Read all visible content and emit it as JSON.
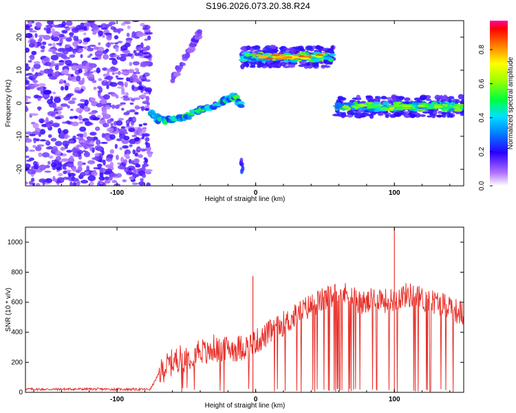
{
  "title": "S196.2026.073.20.38.R24",
  "chart_data": [
    {
      "type": "heatmap",
      "title": "S196.2026.073.20.38.R24",
      "xlabel": "Height of straight line (km)",
      "ylabel": "Frequency (Hz)",
      "xlim": [
        -166,
        150
      ],
      "ylim": [
        -25,
        25
      ],
      "xticks": [
        "-100",
        "0",
        "100"
      ],
      "xtick_values": [
        -100,
        0,
        100
      ],
      "yticks": [
        "20",
        "10",
        "0",
        "-10",
        "-20"
      ],
      "ytick_values": [
        20,
        10,
        0,
        -10,
        -20
      ],
      "colorbar": {
        "label": "Normalized spectral amplitude",
        "range": [
          0,
          0.97
        ],
        "ticks": [
          "0.0",
          "0.2",
          "0.4",
          "0.6",
          "0.8"
        ],
        "tick_values": [
          0,
          0.2,
          0.4,
          0.6,
          0.8
        ]
      },
      "features": [
        {
          "name": "noise",
          "x_range": [
            -166,
            -76
          ],
          "y_range": [
            -25,
            25
          ],
          "amplitude": 0.15
        },
        {
          "name": "rising-track",
          "points": [
            [
              -76,
              -3
            ],
            [
              -70,
              -5
            ],
            [
              -60,
              -5
            ],
            [
              -50,
              -4
            ],
            [
              -40,
              -2
            ],
            [
              -30,
              -1
            ],
            [
              -22,
              1
            ],
            [
              -15,
              2
            ],
            [
              -10,
              -1
            ]
          ],
          "amplitude": 0.5
        },
        {
          "name": "upper-band",
          "x_range": [
            -10,
            56
          ],
          "y": 14,
          "amplitude": 0.9
        },
        {
          "name": "lower-band",
          "x_range": [
            58,
            150
          ],
          "y": -1,
          "amplitude": 0.7
        },
        {
          "name": "upper-left-streak",
          "points": [
            [
              -60,
              7
            ],
            [
              -45,
              18
            ],
            [
              -40,
              22
            ]
          ],
          "amplitude": 0.15
        },
        {
          "name": "lower-blob",
          "x": -10,
          "y": -19,
          "amplitude": 0.2
        }
      ]
    },
    {
      "type": "line",
      "xlabel": "Height of straight line (km)",
      "ylabel": "SNR (10 * v/v)",
      "xlim": [
        -166,
        150
      ],
      "ylim": [
        0,
        1100
      ],
      "xticks": [
        "-100",
        "0",
        "100"
      ],
      "xtick_values": [
        -100,
        0,
        100
      ],
      "yticks": [
        "1000",
        "800",
        "600",
        "400",
        "200",
        "0"
      ],
      "ytick_values": [
        1000,
        800,
        600,
        400,
        200,
        0
      ],
      "series": [
        {
          "name": "SNR",
          "color": "#e8302a",
          "x": [
            -166,
            -150,
            -130,
            -110,
            -90,
            -76,
            -70,
            -65,
            -60,
            -55,
            -50,
            -45,
            -40,
            -35,
            -30,
            -25,
            -20,
            -15,
            -10,
            -5,
            0,
            5,
            10,
            15,
            20,
            25,
            30,
            35,
            40,
            45,
            50,
            55,
            60,
            65,
            70,
            75,
            80,
            85,
            90,
            95,
            100,
            105,
            110,
            115,
            120,
            125,
            130,
            135,
            140,
            145,
            150
          ],
          "y": [
            22,
            20,
            22,
            21,
            20,
            20,
            120,
            170,
            200,
            230,
            220,
            260,
            290,
            250,
            300,
            260,
            300,
            290,
            300,
            310,
            340,
            360,
            400,
            420,
            460,
            480,
            520,
            550,
            580,
            600,
            620,
            640,
            660,
            650,
            640,
            600,
            590,
            620,
            630,
            600,
            620,
            640,
            650,
            640,
            620,
            610,
            600,
            590,
            580,
            540,
            520
          ]
        }
      ],
      "annotations": [
        {
          "x": -2,
          "y": 775,
          "label": "spike"
        },
        {
          "x": 100,
          "y": 1100,
          "label": "peak"
        }
      ]
    }
  ]
}
